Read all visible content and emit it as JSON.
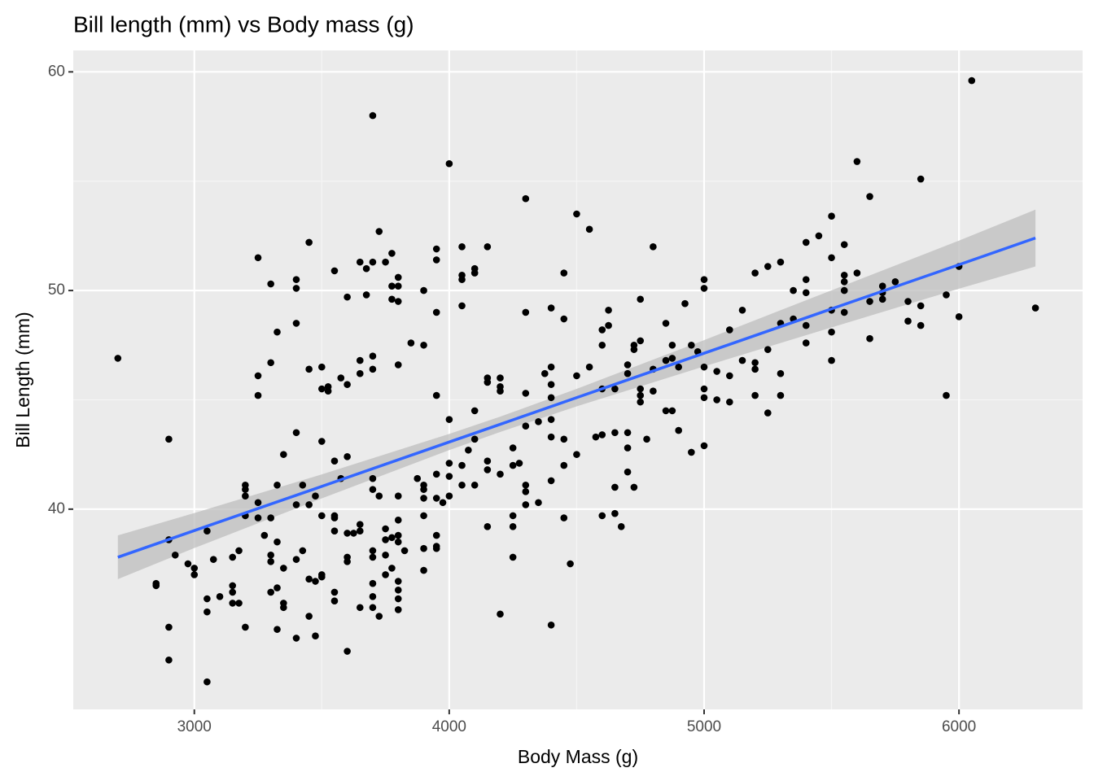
{
  "chart_data": {
    "type": "scatter",
    "title": "Bill length (mm) vs Body mass (g)",
    "x_label": "Body Mass (g)",
    "y_label": "Bill Length (mm)",
    "xlim": [
      2525,
      6485
    ],
    "ylim": [
      30.84,
      60.98
    ],
    "xticks": [
      3000,
      4000,
      5000,
      6000
    ],
    "yticks": [
      40,
      50,
      60
    ],
    "grid": true,
    "color": "#000000",
    "x": [
      2700,
      2850,
      2850,
      2900,
      2900,
      2900,
      2900,
      2925,
      2975,
      3000,
      3000,
      3050,
      3050,
      3050,
      3050,
      3075,
      3100,
      3150,
      3150,
      3150,
      3150,
      3175,
      3175,
      3200,
      3200,
      3200,
      3200,
      3200,
      3250,
      3250,
      3250,
      3250,
      3250,
      3275,
      3300,
      3300,
      3300,
      3300,
      3300,
      3300,
      3325,
      3325,
      3325,
      3325,
      3325,
      3350,
      3350,
      3350,
      3350,
      3400,
      3400,
      3400,
      3400,
      3400,
      3400,
      3400,
      3425,
      3425,
      3450,
      3450,
      3450,
      3450,
      3450,
      3475,
      3475,
      3475,
      3500,
      3500,
      3500,
      3500,
      3500,
      3500,
      3525,
      3525,
      3550,
      3550,
      3550,
      3550,
      3550,
      3550,
      3550,
      3575,
      3575,
      3600,
      3600,
      3600,
      3600,
      3600,
      3600,
      3600,
      3625,
      3650,
      3650,
      3650,
      3650,
      3650,
      3650,
      3675,
      3675,
      3700,
      3700,
      3700,
      3700,
      3700,
      3700,
      3700,
      3700,
      3700,
      3700,
      3700,
      3725,
      3725,
      3725,
      3750,
      3750,
      3750,
      3750,
      3750,
      3775,
      3775,
      3775,
      3775,
      3775,
      3800,
      3800,
      3800,
      3800,
      3800,
      3800,
      3800,
      3800,
      3800,
      3800,
      3800,
      3800,
      3825,
      3850,
      3875,
      3900,
      3900,
      3900,
      3900,
      3900,
      3900,
      3900,
      3900,
      3950,
      3950,
      3950,
      3950,
      3950,
      3950,
      3950,
      3950,
      3950,
      3975,
      4000,
      4000,
      4000,
      4000,
      4000,
      4050,
      4050,
      4050,
      4050,
      4050,
      4050,
      4075,
      4100,
      4100,
      4100,
      4100,
      4100,
      4150,
      4150,
      4150,
      4150,
      4150,
      4150,
      4200,
      4200,
      4200,
      4200,
      4200,
      4250,
      4250,
      4250,
      4250,
      4250,
      4275,
      4300,
      4300,
      4300,
      4300,
      4300,
      4300,
      4300,
      4350,
      4350,
      4375,
      4400,
      4400,
      4400,
      4400,
      4400,
      4400,
      4400,
      4400,
      4450,
      4450,
      4450,
      4450,
      4450,
      4475,
      4500,
      4500,
      4500,
      4550,
      4550,
      4575,
      4600,
      4600,
      4600,
      4600,
      4600,
      4625,
      4625,
      4650,
      4650,
      4650,
      4650,
      4675,
      4700,
      4700,
      4700,
      4700,
      4700,
      4725,
      4725,
      4725,
      4750,
      4750,
      4750,
      4750,
      4750,
      4775,
      4800,
      4800,
      4800,
      4850,
      4850,
      4850,
      4875,
      4875,
      4875,
      4900,
      4900,
      4925,
      4950,
      4950,
      4975,
      5000,
      5000,
      5000,
      5000,
      5000,
      5000,
      5050,
      5050,
      5100,
      5100,
      5100,
      5150,
      5150,
      5200,
      5200,
      5200,
      5200,
      5250,
      5250,
      5250,
      5300,
      5300,
      5300,
      5300,
      5350,
      5350,
      5400,
      5400,
      5400,
      5400,
      5400,
      5450,
      5500,
      5500,
      5500,
      5500,
      5500,
      5550,
      5550,
      5550,
      5550,
      5550,
      5600,
      5600,
      5650,
      5650,
      5650,
      5700,
      5700,
      5700,
      5750,
      5800,
      5800,
      5850,
      5850,
      5850,
      5950,
      5950,
      6000,
      6000,
      6050,
      6300
    ],
    "values": [
      46.9,
      36.6,
      36.5,
      43.2,
      38.6,
      34.6,
      33.1,
      37.9,
      37.5,
      37.3,
      37.0,
      39.0,
      35.9,
      35.3,
      32.1,
      37.7,
      36.0,
      37.8,
      36.5,
      36.2,
      35.7,
      38.1,
      35.7,
      41.1,
      40.9,
      40.6,
      39.7,
      34.6,
      51.5,
      46.1,
      45.2,
      40.3,
      39.6,
      38.8,
      50.3,
      46.7,
      39.6,
      37.9,
      37.6,
      36.2,
      48.1,
      41.1,
      38.5,
      36.4,
      34.5,
      42.5,
      37.3,
      35.7,
      35.5,
      50.5,
      50.1,
      48.5,
      43.5,
      40.2,
      37.7,
      34.1,
      41.1,
      38.1,
      52.2,
      46.4,
      40.2,
      36.8,
      35.1,
      40.6,
      36.7,
      34.2,
      46.5,
      45.5,
      43.1,
      39.7,
      37.0,
      36.9,
      45.6,
      45.4,
      50.9,
      42.2,
      39.7,
      39.6,
      39.0,
      36.2,
      35.8,
      41.4,
      46.0,
      49.7,
      45.7,
      42.4,
      38.9,
      37.8,
      37.6,
      33.5,
      38.9,
      51.3,
      46.8,
      46.2,
      39.3,
      39.0,
      35.5,
      51.0,
      49.8,
      58.0,
      51.3,
      47.0,
      46.4,
      41.4,
      40.9,
      38.1,
      37.8,
      36.6,
      36.0,
      35.5,
      52.7,
      40.6,
      35.1,
      51.3,
      39.1,
      38.6,
      37.9,
      37.0,
      51.7,
      50.2,
      49.6,
      38.7,
      37.3,
      50.6,
      50.2,
      49.5,
      46.6,
      40.6,
      39.5,
      38.8,
      38.5,
      36.7,
      36.3,
      35.9,
      35.4,
      38.1,
      47.6,
      41.4,
      50.0,
      47.5,
      41.1,
      40.9,
      40.5,
      39.7,
      38.2,
      37.2,
      51.9,
      51.4,
      49.0,
      45.2,
      41.6,
      40.5,
      38.8,
      38.3,
      38.2,
      40.3,
      55.8,
      44.1,
      42.1,
      41.5,
      40.6,
      52.0,
      50.7,
      50.5,
      49.3,
      42.0,
      41.1,
      42.7,
      51.0,
      50.8,
      44.5,
      43.2,
      41.1,
      52.0,
      46.0,
      45.8,
      42.2,
      41.8,
      39.2,
      46.0,
      45.6,
      45.4,
      41.6,
      35.2,
      42.8,
      42.0,
      39.7,
      39.2,
      37.8,
      42.1,
      54.2,
      49.0,
      45.3,
      43.8,
      41.1,
      40.8,
      40.2,
      44.0,
      40.3,
      46.2,
      49.2,
      46.5,
      45.7,
      45.1,
      44.1,
      43.3,
      41.3,
      34.7,
      50.8,
      48.7,
      43.2,
      42.0,
      39.6,
      37.5,
      53.5,
      46.1,
      42.5,
      52.8,
      46.5,
      43.3,
      48.2,
      47.5,
      45.5,
      43.4,
      39.7,
      48.4,
      49.1,
      45.5,
      43.5,
      41.0,
      39.8,
      39.2,
      46.6,
      46.2,
      43.5,
      42.8,
      41.7,
      47.3,
      47.5,
      41.0,
      49.6,
      47.7,
      45.5,
      45.2,
      44.9,
      43.2,
      52.0,
      46.4,
      45.4,
      48.5,
      46.8,
      44.5,
      47.5,
      46.9,
      44.5,
      46.5,
      43.6,
      49.4,
      47.5,
      42.6,
      47.2,
      50.5,
      50.1,
      46.5,
      45.5,
      45.1,
      42.9,
      46.3,
      45.0,
      48.2,
      46.1,
      44.9,
      49.1,
      46.8,
      50.8,
      46.7,
      46.4,
      45.2,
      51.1,
      47.3,
      44.4,
      51.3,
      48.5,
      46.2,
      45.2,
      50.0,
      48.7,
      52.2,
      50.5,
      49.9,
      48.4,
      47.6,
      52.5,
      53.4,
      51.5,
      49.1,
      48.1,
      46.8,
      52.1,
      50.7,
      50.4,
      50.0,
      49.0,
      55.9,
      50.8,
      54.3,
      49.5,
      47.8,
      50.2,
      49.9,
      49.6,
      50.4,
      49.5,
      48.6,
      55.1,
      49.3,
      48.4,
      49.8,
      45.2,
      51.1,
      48.8,
      59.6,
      49.2
    ],
    "trend": {
      "color": "#3366ff",
      "band_color": "#bdbdbd",
      "x": [
        2700,
        3000,
        3500,
        4000,
        4200,
        4500,
        5000,
        5500,
        6000,
        6300
      ],
      "y": [
        37.8,
        39.02,
        41.04,
        43.07,
        43.88,
        45.1,
        47.13,
        49.16,
        51.18,
        52.4
      ],
      "ymin": [
        36.8,
        38.22,
        40.49,
        42.7,
        43.53,
        44.7,
        46.53,
        48.31,
        50.08,
        51.1
      ],
      "ymax": [
        38.8,
        39.82,
        41.59,
        43.44,
        44.23,
        45.5,
        47.73,
        50.01,
        52.28,
        53.7
      ]
    }
  }
}
